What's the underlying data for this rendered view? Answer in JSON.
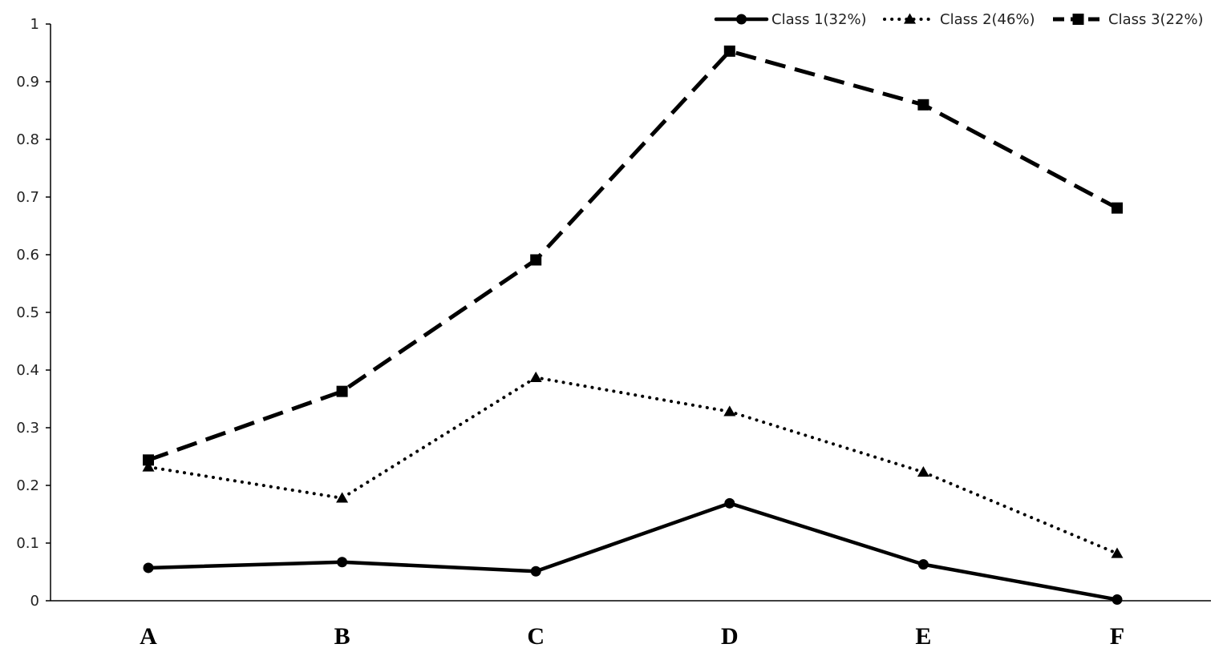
{
  "chart_data": {
    "type": "line",
    "categories": [
      "A",
      "B",
      "C",
      "D",
      "E",
      "F"
    ],
    "series": [
      {
        "name": "Class 1(32%)",
        "values": [
          0.057,
          0.067,
          0.051,
          0.169,
          0.063,
          0.002
        ],
        "style": "solid",
        "marker": "circle"
      },
      {
        "name": "Class 2(46%)",
        "values": [
          0.232,
          0.178,
          0.387,
          0.328,
          0.223,
          0.082
        ],
        "style": "dotted",
        "marker": "triangle"
      },
      {
        "name": "Class 3(22%)",
        "values": [
          0.244,
          0.363,
          0.591,
          0.953,
          0.86,
          0.681
        ],
        "style": "dashed",
        "marker": "square"
      }
    ],
    "y_ticks": [
      "0",
      "0.1",
      "0.2",
      "0.3",
      "0.4",
      "0.5",
      "0.6",
      "0.7",
      "0.8",
      "0.9",
      "1"
    ],
    "ylim": [
      0,
      1
    ],
    "grid": false,
    "legend_position": "top-right",
    "color": "#000000"
  }
}
